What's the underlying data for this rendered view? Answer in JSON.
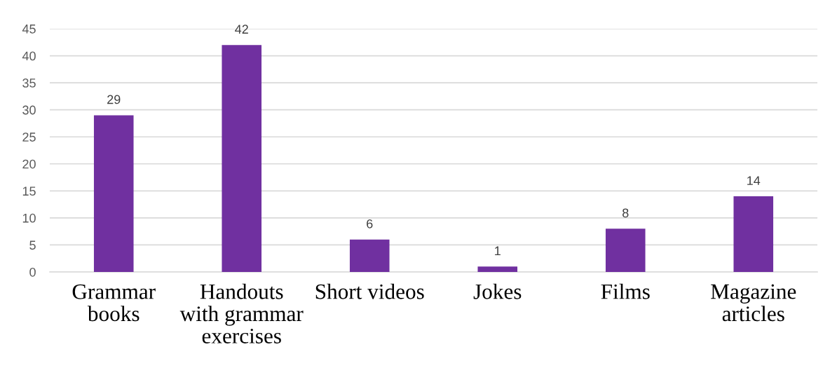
{
  "chart_data": {
    "type": "bar",
    "categories": [
      "Grammar books",
      "Handouts with grammar exercises",
      "Short videos",
      "Jokes",
      "Films",
      "Magazine articles"
    ],
    "values": [
      29,
      42,
      6,
      1,
      8,
      14
    ],
    "color": "#7030a0",
    "ylim": [
      0,
      45
    ],
    "yticks": [
      0,
      5,
      10,
      15,
      20,
      25,
      30,
      35,
      40,
      45
    ],
    "grid": "y",
    "data_labels": true
  }
}
